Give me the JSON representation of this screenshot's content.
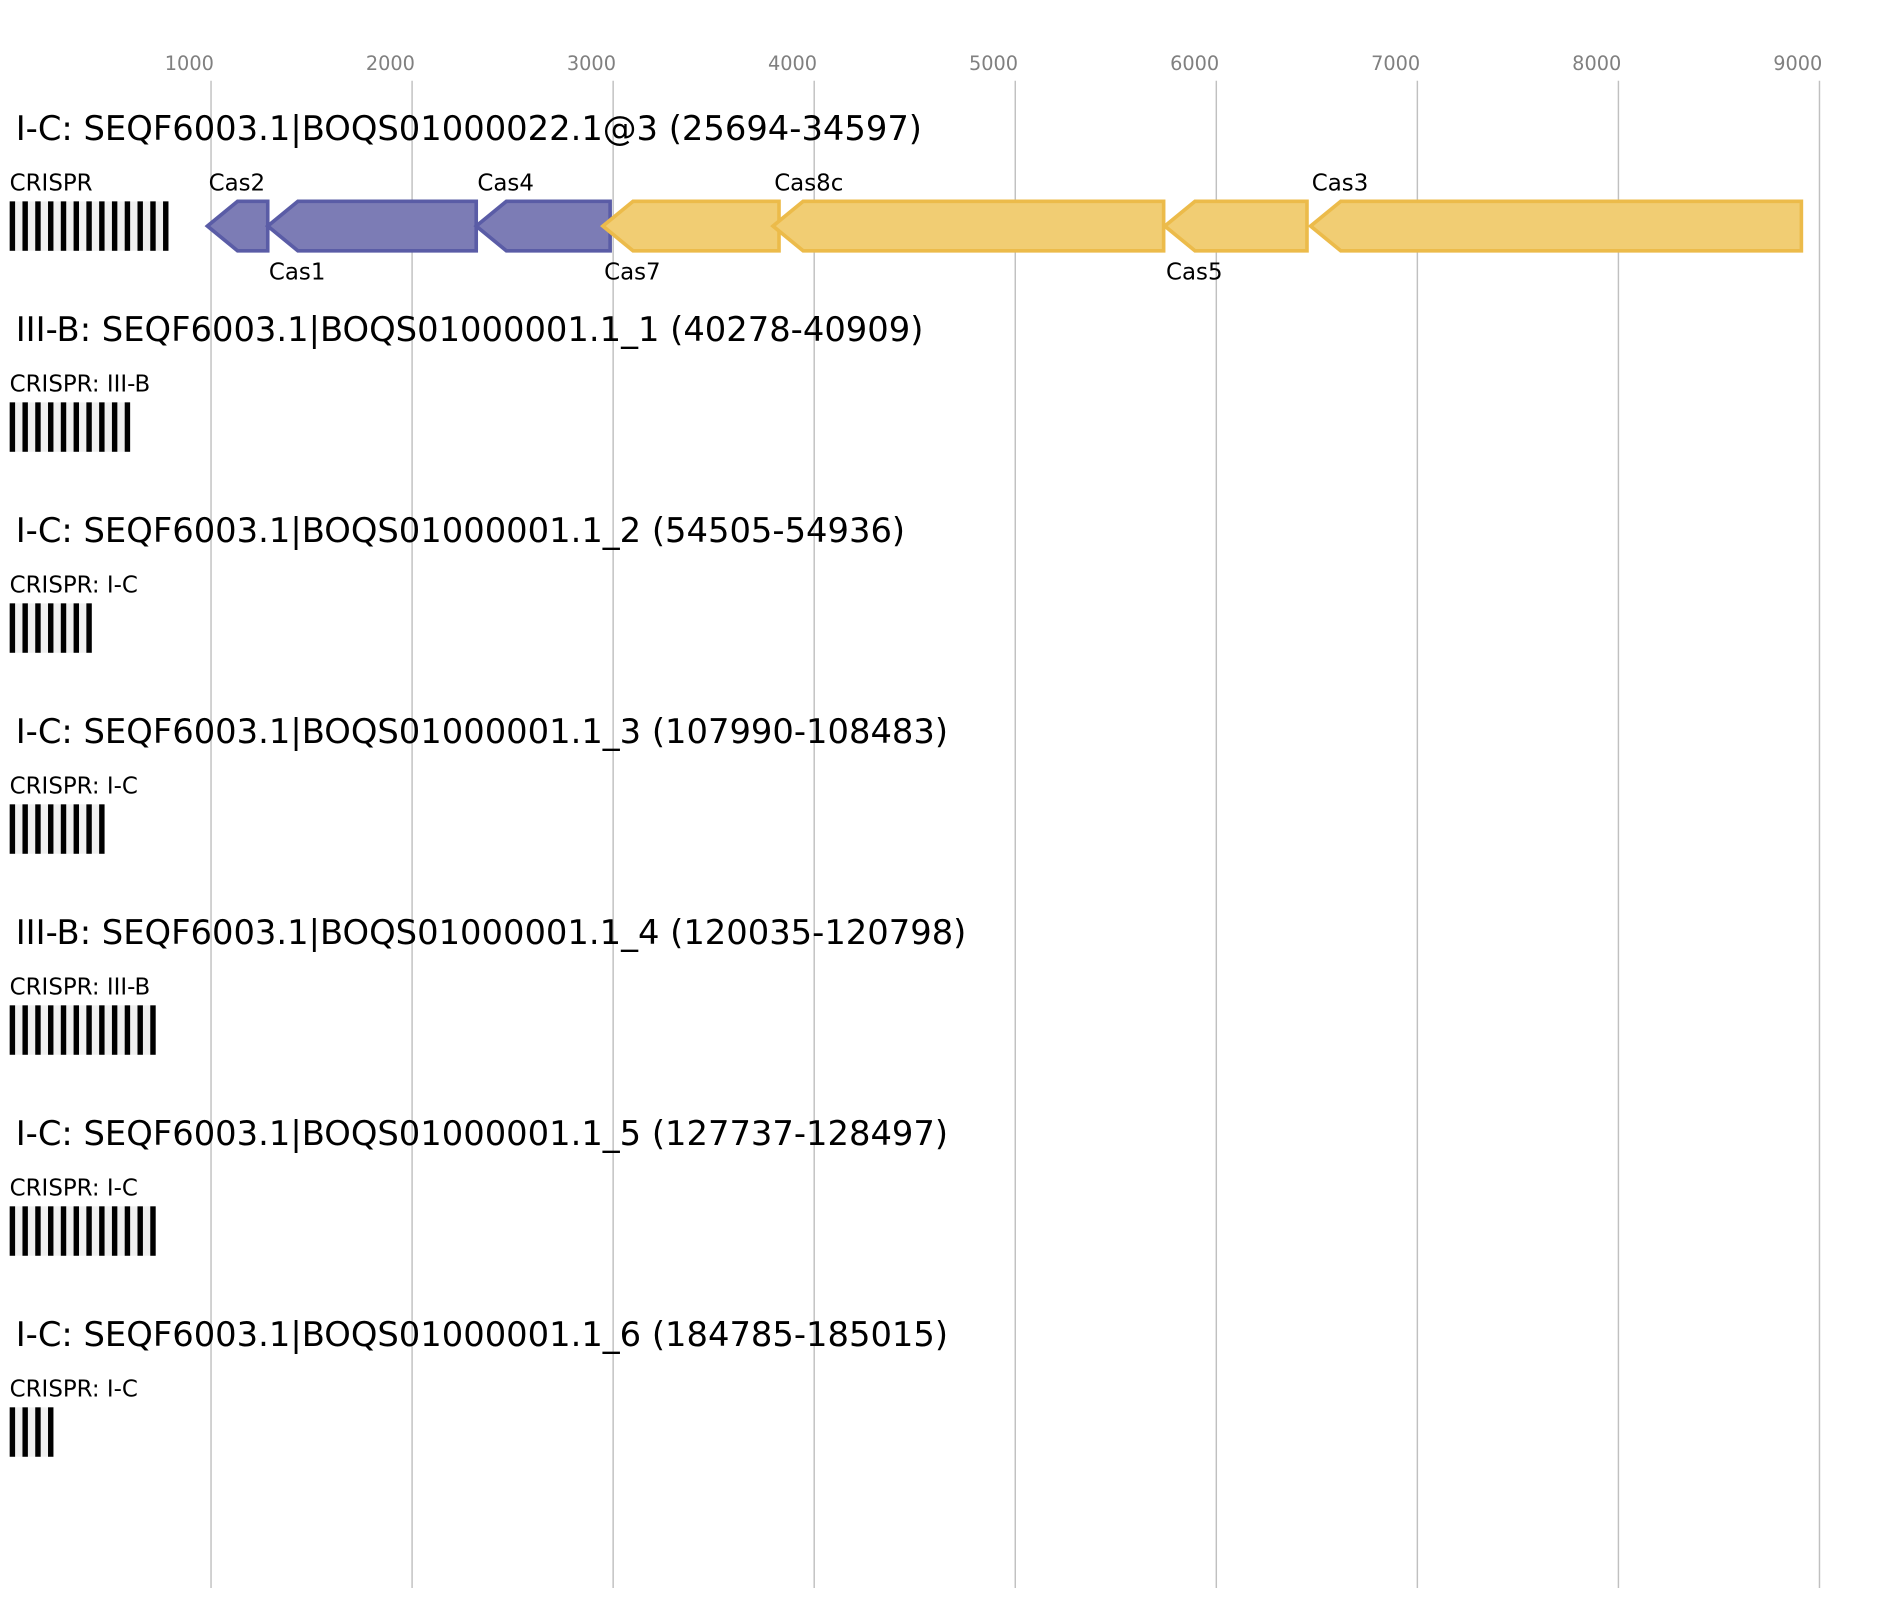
{
  "axis": {
    "ticks": [
      1000,
      2000,
      3000,
      4000,
      5000,
      6000,
      7000,
      8000,
      9000
    ],
    "range": [
      1000,
      9000
    ]
  },
  "colors": {
    "purple_fill": "#7c7cb5",
    "purple_stroke": "#5a5ca6",
    "yellow_fill": "#f1cd73",
    "yellow_stroke": "#ecbb4a",
    "spacer": "#f0f0f0",
    "repeat": "#000000"
  },
  "chart_data": {
    "type": "gene-map",
    "loci": [
      {
        "title": "I-C: SEQF6003.1|BOQS01000022.1@3 (25694-34597)",
        "crispr_label": "CRISPR",
        "repeats": 13,
        "genes": [
          {
            "name": "Cas2",
            "start": 982,
            "end": 1282,
            "strand": "-",
            "color": "purple",
            "label_pos": "top"
          },
          {
            "name": "Cas1",
            "start": 1282,
            "end": 2319,
            "strand": "-",
            "color": "purple",
            "label_pos": "bottom"
          },
          {
            "name": "Cas4",
            "start": 2319,
            "end": 2985,
            "strand": "-",
            "color": "purple",
            "label_pos": "top"
          },
          {
            "name": "Cas7",
            "start": 2949,
            "end": 3825,
            "strand": "-",
            "color": "yellow",
            "label_pos": "bottom"
          },
          {
            "name": "Cas8c",
            "start": 3795,
            "end": 5738,
            "strand": "-",
            "color": "yellow",
            "label_pos": "top"
          },
          {
            "name": "Cas5",
            "start": 5744,
            "end": 6451,
            "strand": "-",
            "color": "yellow",
            "label_pos": "bottom"
          },
          {
            "name": "Cas3",
            "start": 6469,
            "end": 8910,
            "strand": "-",
            "color": "yellow",
            "label_pos": "top"
          }
        ]
      },
      {
        "title": "III-B: SEQF6003.1|BOQS01000001.1_1 (40278-40909)",
        "crispr_label": "CRISPR: III-B",
        "repeats": 10,
        "genes": []
      },
      {
        "title": "I-C: SEQF6003.1|BOQS01000001.1_2 (54505-54936)",
        "crispr_label": "CRISPR: I-C",
        "repeats": 7,
        "genes": []
      },
      {
        "title": "I-C: SEQF6003.1|BOQS01000001.1_3 (107990-108483)",
        "crispr_label": "CRISPR: I-C",
        "repeats": 8,
        "genes": []
      },
      {
        "title": "III-B: SEQF6003.1|BOQS01000001.1_4 (120035-120798)",
        "crispr_label": "CRISPR: III-B",
        "repeats": 12,
        "genes": []
      },
      {
        "title": "I-C: SEQF6003.1|BOQS01000001.1_5 (127737-128497)",
        "crispr_label": "CRISPR: I-C",
        "repeats": 12,
        "genes": []
      },
      {
        "title": "I-C: SEQF6003.1|BOQS01000001.1_6 (184785-185015)",
        "crispr_label": "CRISPR: I-C",
        "repeats": 4,
        "genes": []
      }
    ]
  }
}
